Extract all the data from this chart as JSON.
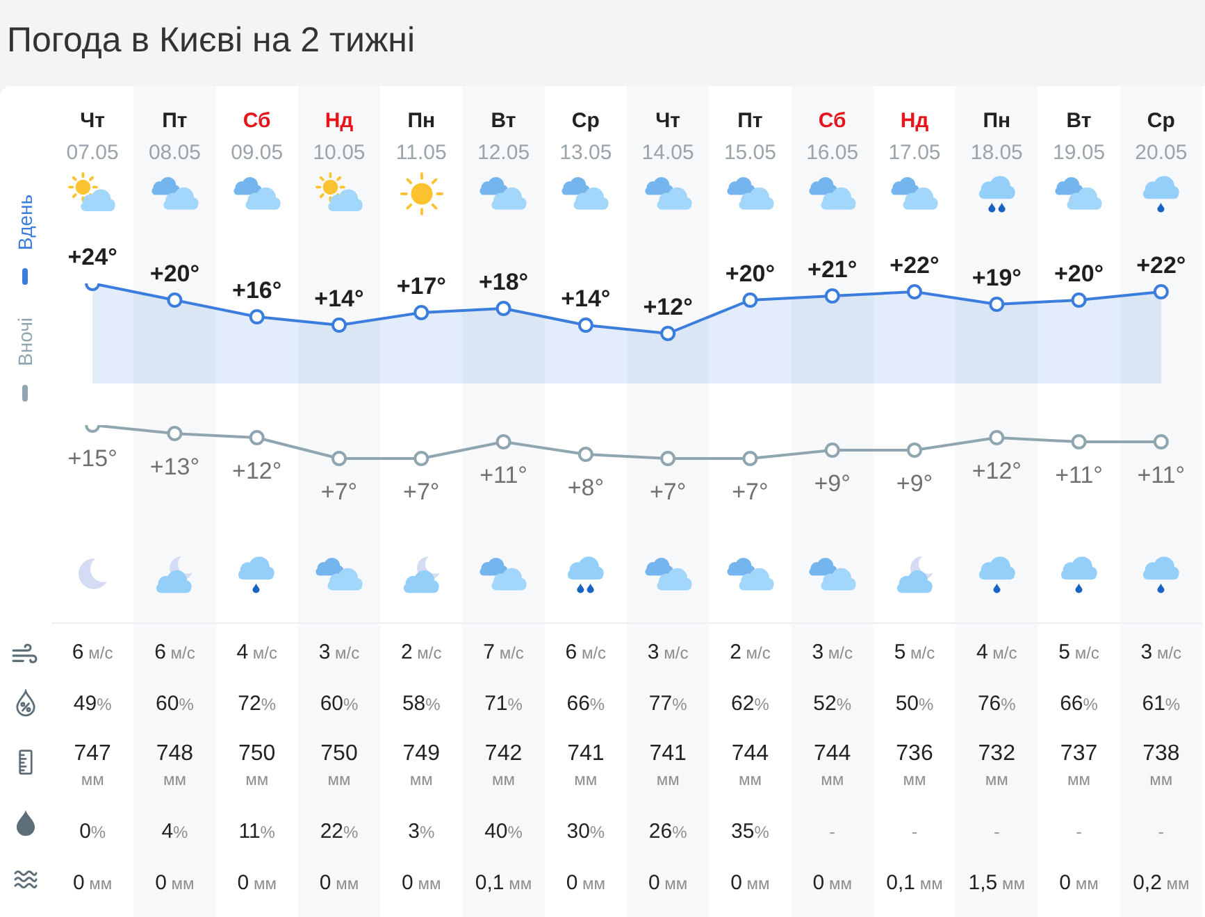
{
  "chart_data": [
    {
      "type": "line",
      "title": "Погода в Києві на 2 тижні",
      "categories": [
        "Чт 07.05",
        "Пт 08.05",
        "Сб 09.05",
        "Нд 10.05",
        "Пн 11.05",
        "Вт 12.05",
        "Ср 13.05",
        "Чт 14.05",
        "Пт 15.05",
        "Сб 16.05",
        "Нд 17.05",
        "Пн 18.05",
        "Вт 19.05",
        "Ср 20.05"
      ],
      "series": [
        {
          "name": "Вдень",
          "type": "area",
          "color": "#3b7ddd",
          "values": [
            24,
            20,
            16,
            14,
            17,
            18,
            14,
            12,
            20,
            21,
            22,
            19,
            20,
            22
          ],
          "value_labels": [
            "+24°",
            "+20°",
            "+16°",
            "+14°",
            "+17°",
            "+18°",
            "+14°",
            "+12°",
            "+20°",
            "+21°",
            "+22°",
            "+19°",
            "+20°",
            "+22°"
          ]
        }
      ],
      "tick_labels": "x",
      "legend": "left",
      "marker": "circle"
    },
    {
      "type": "line",
      "categories": [
        null,
        null,
        null,
        null,
        null,
        null,
        null,
        null,
        null,
        null,
        null,
        null,
        null,
        null
      ],
      "series": [
        {
          "name": "Вночі",
          "type": "line",
          "color": "#8fa5af",
          "values": [
            15,
            13,
            12,
            7,
            7,
            11,
            8,
            7,
            7,
            9,
            9,
            12,
            11,
            11
          ],
          "value_labels": [
            "+15°",
            "+13°",
            "+12°",
            "+7°",
            "+7°",
            "+11°",
            "+8°",
            "+7°",
            "+7°",
            "+9°",
            "+9°",
            "+12°",
            "+11°",
            "+11°"
          ]
        }
      ],
      "tick_labels": false,
      "legend": "left",
      "marker": "circle"
    },
    {
      "type": "other",
      "values": [
        6,
        6,
        4,
        3,
        2,
        7,
        6,
        3,
        2,
        3,
        5,
        4,
        5,
        3
      ],
      "value_labels": [
        "6 м/с",
        "6 м/с",
        "4 м/с",
        "3 м/с",
        "2 м/с",
        "7 м/с",
        "6 м/с",
        "3 м/с",
        "2 м/с",
        "3 м/с",
        "5 м/с",
        "4 м/с",
        "5 м/с",
        "3 м/с"
      ]
    },
    {
      "type": "other",
      "values": [
        49,
        60,
        72,
        60,
        58,
        71,
        66,
        77,
        62,
        52,
        50,
        76,
        66,
        61
      ],
      "value_labels": [
        "49%",
        "60%",
        "72%",
        "60%",
        "58%",
        "71%",
        "66%",
        "77%",
        "62%",
        "52%",
        "50%",
        "76%",
        "66%",
        "61%"
      ]
    },
    {
      "type": "other",
      "values": [
        747,
        748,
        750,
        750,
        749,
        742,
        741,
        741,
        744,
        744,
        736,
        732,
        737,
        738
      ],
      "value_labels": [
        "747 мм",
        "748 мм",
        "750 мм",
        "750 мм",
        "749 мм",
        "742 мм",
        "741 мм",
        "741 мм",
        "744 мм",
        "744 мм",
        "736 мм",
        "732 мм",
        "737 мм",
        "738 мм"
      ]
    },
    {
      "type": "other",
      "values": [
        0,
        4,
        11,
        22,
        3,
        40,
        30,
        26,
        35,
        null,
        null,
        null,
        null,
        null
      ],
      "value_labels": [
        "0%",
        "4%",
        "11%",
        "22%",
        "3%",
        "40%",
        "30%",
        "26%",
        "35%",
        "-",
        "-",
        "-",
        "-",
        "-"
      ]
    },
    {
      "type": "other",
      "values": [
        0,
        0,
        0,
        0,
        0,
        0.1,
        0,
        0,
        0,
        0,
        0.1,
        1.5,
        0,
        0.2
      ],
      "value_labels": [
        "0 мм",
        "0 мм",
        "0 мм",
        "0 мм",
        "0 мм",
        "0,1 мм",
        "0 мм",
        "0 мм",
        "0 мм",
        "0 мм",
        "0,1 мм",
        "1,5 мм",
        "0 мм",
        "0,2 мм"
      ]
    }
  ]
}
